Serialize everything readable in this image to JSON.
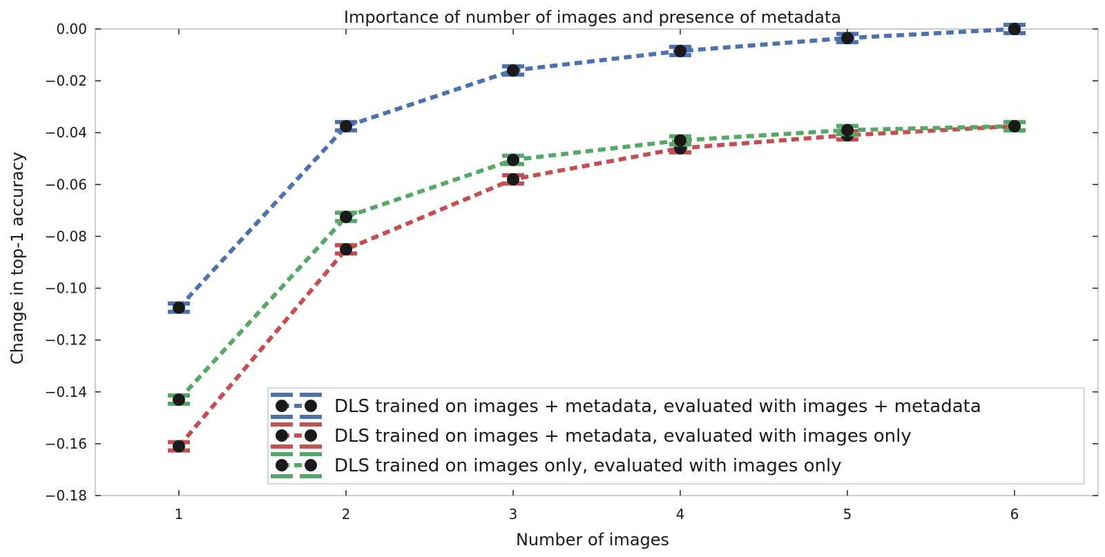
{
  "chart_data": {
    "type": "line",
    "title": "Importance of number of images and presence of metadata",
    "xlabel": "Number of images",
    "ylabel": "Change in top-1 accuracy",
    "x": [
      1,
      2,
      3,
      4,
      5,
      6
    ],
    "xlim": [
      0.5,
      6.5
    ],
    "ylim": [
      -0.18,
      0.0
    ],
    "x_ticks": [
      1,
      2,
      3,
      4,
      5,
      6
    ],
    "x_tick_labels": [
      "1",
      "2",
      "3",
      "4",
      "5",
      "6"
    ],
    "y_ticks": [
      0.0,
      -0.02,
      -0.04,
      -0.06,
      -0.08,
      -0.1,
      -0.12,
      -0.14,
      -0.16,
      -0.18
    ],
    "y_tick_labels": [
      "0.00",
      "−0.02",
      "−0.04",
      "−0.06",
      "−0.08",
      "−0.10",
      "−0.12",
      "−0.14",
      "−0.16",
      "−0.18"
    ],
    "grid": false,
    "legend_position": "lower-right",
    "marker_color": "#1a1a1a",
    "series": [
      {
        "name": "DLS trained on images + metadata, evaluated with images + metadata",
        "color": "#4c72b0",
        "values": [
          -0.1075,
          -0.0375,
          -0.016,
          -0.0085,
          -0.0035,
          0.0
        ]
      },
      {
        "name": "DLS trained on images + metadata, evaluated with images only",
        "color": "#c44e52",
        "values": [
          -0.161,
          -0.085,
          -0.058,
          -0.046,
          -0.041,
          -0.0375
        ]
      },
      {
        "name": "DLS trained on images only, evaluated with images only",
        "color": "#55a868",
        "values": [
          -0.143,
          -0.0725,
          -0.0505,
          -0.043,
          -0.039,
          -0.0375
        ]
      }
    ]
  }
}
